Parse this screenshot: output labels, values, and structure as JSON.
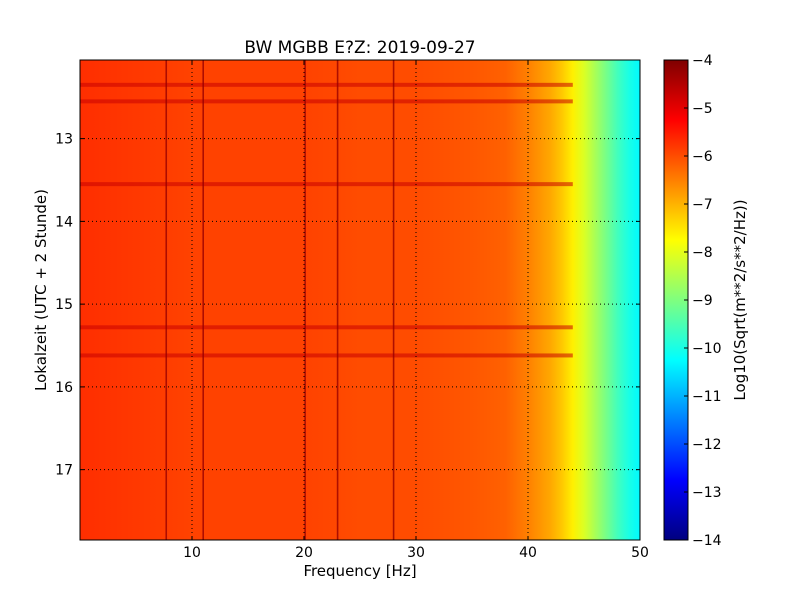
{
  "chart_data": {
    "type": "heatmap",
    "title": "BW MGBB E?Z: 2019-09-27",
    "xlabel": "Frequency [Hz]",
    "ylabel": "Lokalzeit (UTC + 2 Stunde)",
    "xlim": [
      0,
      50
    ],
    "ylim": [
      12.05,
      17.85
    ],
    "y_inverted": true,
    "x_ticks": [
      10,
      20,
      30,
      40,
      50
    ],
    "x_tick_labels": [
      "10",
      "20",
      "30",
      "40",
      "50"
    ],
    "y_ticks": [
      13,
      14,
      15,
      16,
      17
    ],
    "y_tick_labels": [
      "13",
      "14",
      "15",
      "16",
      "17"
    ],
    "grid": true,
    "colormap": "jet",
    "colorbar": {
      "label": "Log10(Sqrt(m**2/s**2/Hz))",
      "range": [
        -14,
        -4
      ],
      "ticks": [
        -4,
        -5,
        -6,
        -7,
        -8,
        -9,
        -10,
        -11,
        -12,
        -13,
        -14
      ],
      "tick_labels": [
        "−4",
        "−5",
        "−6",
        "−7",
        "−8",
        "−9",
        "−10",
        "−11",
        "−12",
        "−13",
        "−14"
      ]
    },
    "spectrum_profile": {
      "frequency_hz": [
        0,
        5,
        10,
        15,
        20,
        25,
        30,
        35,
        38,
        40,
        42,
        43,
        44,
        45,
        46,
        47,
        48,
        49,
        50
      ],
      "level": [
        -5.7,
        -5.8,
        -5.9,
        -5.9,
        -5.9,
        -6.0,
        -6.0,
        -6.1,
        -6.2,
        -6.5,
        -6.9,
        -7.2,
        -7.6,
        -8.1,
        -8.6,
        -9.1,
        -9.6,
        -10.0,
        -10.3
      ]
    },
    "narrowband_lines_hz": [
      7.7,
      11.0,
      20.1,
      23.0,
      28.0
    ],
    "broadband_events_hour": [
      12.35,
      12.55,
      13.55,
      15.28,
      15.62
    ]
  }
}
